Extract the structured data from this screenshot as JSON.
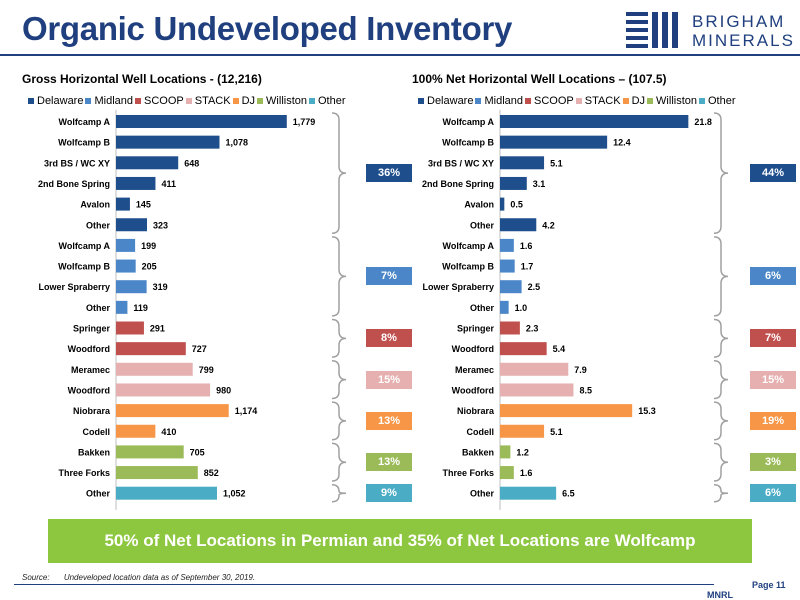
{
  "header": {
    "title": "Organic Undeveloped Inventory"
  },
  "logo": {
    "line1": "BRIGHAM",
    "line2": "MINERALS"
  },
  "colors": {
    "Delaware": "#1f4e8c",
    "Midland": "#4a86c8",
    "SCOOP": "#c0504d",
    "STACK": "#e6b0b0",
    "DJ": "#f79646",
    "Williston": "#9bbb59",
    "Other": "#4bacc6",
    "accent": "#1f3f7f",
    "callout": "#8dc63f",
    "brace": "#a0a0a0"
  },
  "legend": [
    "Delaware",
    "Midland",
    "SCOOP",
    "STACK",
    "DJ",
    "Williston",
    "Other"
  ],
  "chart_data": [
    {
      "type": "bar",
      "orientation": "horizontal",
      "title": "Gross Horizontal Well Locations - (12,216)",
      "categories": [
        "Wolfcamp A",
        "Wolfcamp B",
        "3rd BS / WC XY",
        "2nd Bone Spring",
        "Avalon",
        "Other",
        "Wolfcamp A",
        "Wolfcamp B",
        "Lower Spraberry",
        "Other",
        "Springer",
        "Woodford",
        "Meramec",
        "Woodford",
        "Niobrara",
        "Codell",
        "Bakken",
        "Three Forks",
        "Other"
      ],
      "groups": [
        "Delaware",
        "Delaware",
        "Delaware",
        "Delaware",
        "Delaware",
        "Delaware",
        "Midland",
        "Midland",
        "Midland",
        "Midland",
        "SCOOP",
        "SCOOP",
        "STACK",
        "STACK",
        "DJ",
        "DJ",
        "Williston",
        "Williston",
        "Other"
      ],
      "values": [
        1779,
        1078,
        648,
        411,
        145,
        323,
        199,
        205,
        319,
        119,
        291,
        727,
        799,
        980,
        1174,
        410,
        705,
        852,
        1052
      ],
      "labels": [
        "1,779",
        "1,078",
        "648",
        "411",
        "145",
        "323",
        "199",
        "205",
        "319",
        "119",
        "291",
        "727",
        "799",
        "980",
        "1,174",
        "410",
        "705",
        "852",
        "1,052"
      ],
      "xlim": [
        0,
        2000
      ],
      "legend_position": "top",
      "grid": false,
      "brackets": [
        {
          "label": "36%",
          "group": "Delaware",
          "start": 0,
          "end": 5
        },
        {
          "label": "7%",
          "group": "Midland",
          "start": 6,
          "end": 9
        },
        {
          "label": "8%",
          "group": "SCOOP",
          "start": 10,
          "end": 11
        },
        {
          "label": "15%",
          "group": "STACK",
          "start": 12,
          "end": 13
        },
        {
          "label": "13%",
          "group": "DJ",
          "start": 14,
          "end": 15
        },
        {
          "label": "13%",
          "group": "Williston",
          "start": 16,
          "end": 17
        },
        {
          "label": "9%",
          "group": "Other",
          "start": 18,
          "end": 18
        }
      ]
    },
    {
      "type": "bar",
      "orientation": "horizontal",
      "title": "100% Net Horizontal Well Locations – (107.5)",
      "categories": [
        "Wolfcamp A",
        "Wolfcamp B",
        "3rd BS / WC XY",
        "2nd Bone Spring",
        "Avalon",
        "Other",
        "Wolfcamp A",
        "Wolfcamp B",
        "Lower Spraberry",
        "Other",
        "Springer",
        "Woodford",
        "Meramec",
        "Woodford",
        "Niobrara",
        "Codell",
        "Bakken",
        "Three Forks",
        "Other"
      ],
      "groups": [
        "Delaware",
        "Delaware",
        "Delaware",
        "Delaware",
        "Delaware",
        "Delaware",
        "Midland",
        "Midland",
        "Midland",
        "Midland",
        "SCOOP",
        "SCOOP",
        "STACK",
        "STACK",
        "DJ",
        "DJ",
        "Williston",
        "Williston",
        "Other"
      ],
      "values": [
        21.8,
        12.4,
        5.1,
        3.1,
        0.5,
        4.2,
        1.6,
        1.7,
        2.5,
        1.0,
        2.3,
        5.4,
        7.9,
        8.5,
        15.3,
        5.1,
        1.2,
        1.6,
        6.5
      ],
      "labels": [
        "21.8",
        "12.4",
        "5.1",
        "3.1",
        "0.5",
        "4.2",
        "1.6",
        "1.7",
        "2.5",
        "1.0",
        "2.3",
        "5.4",
        "7.9",
        "8.5",
        "15.3",
        "5.1",
        "1.2",
        "1.6",
        "6.5"
      ],
      "xlim": [
        0,
        25
      ],
      "legend_position": "top",
      "grid": false,
      "brackets": [
        {
          "label": "44%",
          "group": "Delaware",
          "start": 0,
          "end": 5
        },
        {
          "label": "6%",
          "group": "Midland",
          "start": 6,
          "end": 9
        },
        {
          "label": "7%",
          "group": "SCOOP",
          "start": 10,
          "end": 11
        },
        {
          "label": "15%",
          "group": "STACK",
          "start": 12,
          "end": 13
        },
        {
          "label": "19%",
          "group": "DJ",
          "start": 14,
          "end": 15
        },
        {
          "label": "3%",
          "group": "Williston",
          "start": 16,
          "end": 17
        },
        {
          "label": "6%",
          "group": "Other",
          "start": 18,
          "end": 18
        }
      ]
    }
  ],
  "callout": "50% of Net Locations in Permian and 35% of Net Locations are Wolfcamp",
  "footer": {
    "source_label": "Source:",
    "source_text": "Undeveloped location data as of September 30, 2019.",
    "page": "Page 11",
    "ticker": "MNRL"
  }
}
